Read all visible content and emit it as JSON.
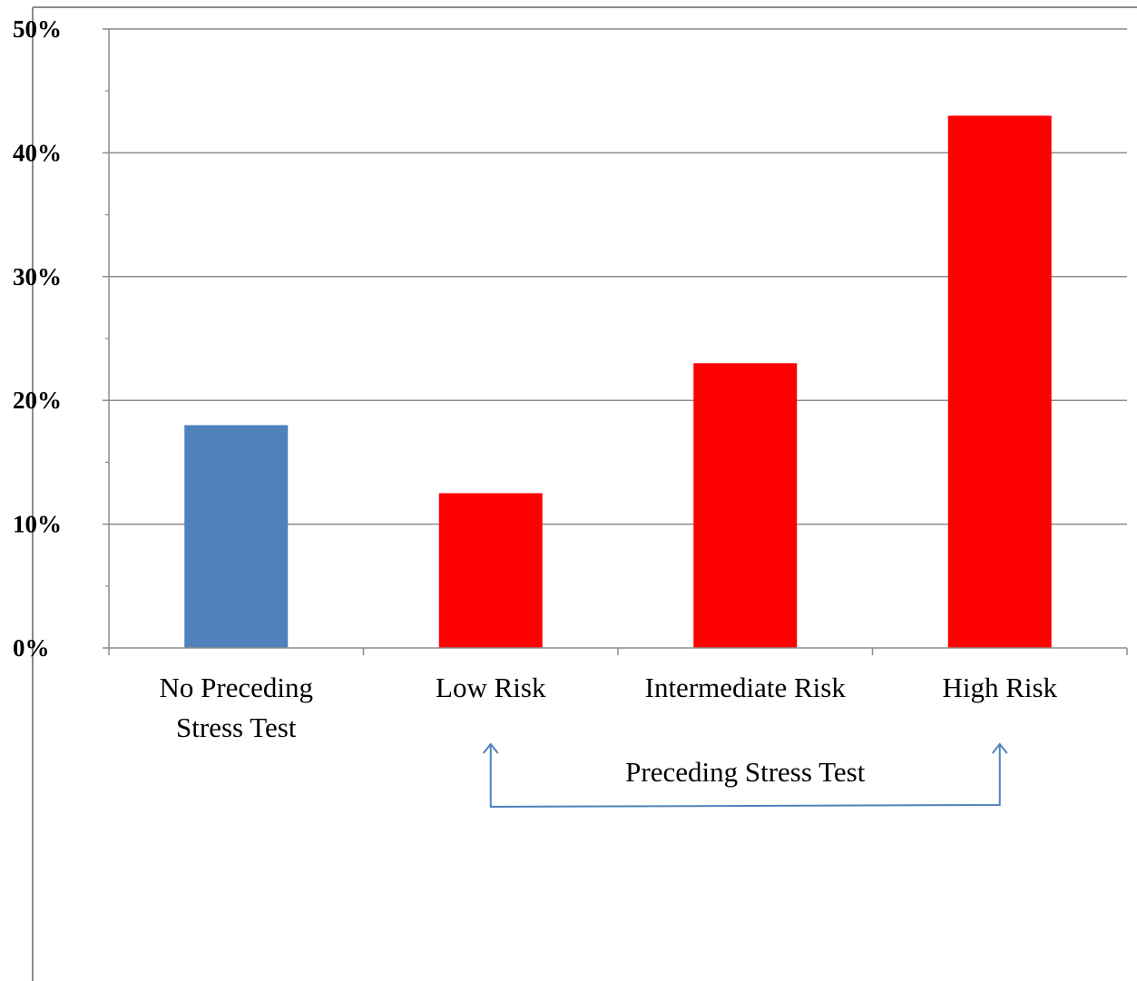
{
  "chart_data": {
    "type": "bar",
    "title": "",
    "xlabel": "",
    "ylabel": "",
    "categories": [
      [
        "No Preceding",
        "Stress Test"
      ],
      [
        "Low Risk"
      ],
      [
        "Intermediate Risk"
      ],
      [
        "High Risk"
      ]
    ],
    "values": [
      18,
      12.5,
      23,
      43
    ],
    "bar_colors": [
      "#4f81bd",
      "#ff0000",
      "#ff0000",
      "#ff0000"
    ],
    "ylim": [
      0,
      50
    ],
    "yticks": [
      {
        "value": 0,
        "label": "0%"
      },
      {
        "value": 10,
        "label": "10%"
      },
      {
        "value": 20,
        "label": "20%"
      },
      {
        "value": 30,
        "label": "30%"
      },
      {
        "value": 40,
        "label": "40%"
      },
      {
        "value": 50,
        "label": "50%"
      }
    ],
    "grid": true,
    "annotation": {
      "text": "Preceding Stress Test",
      "spans_categories": [
        "Low Risk",
        "High Risk"
      ],
      "color": "#4f81bd"
    }
  }
}
